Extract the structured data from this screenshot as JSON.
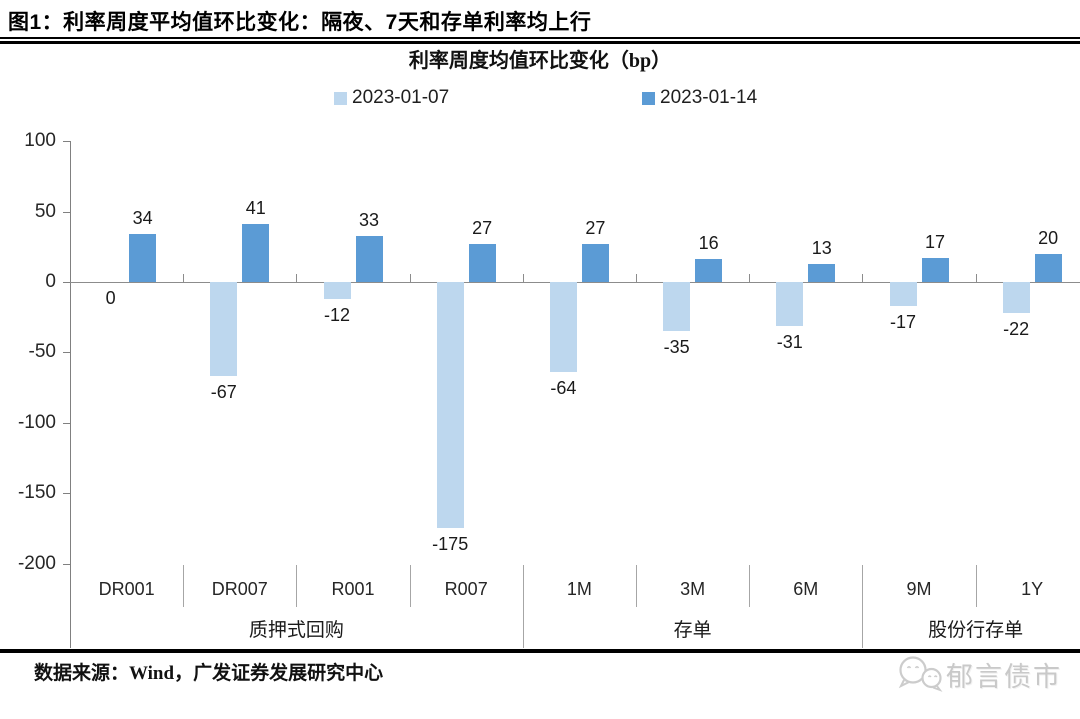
{
  "figure_title": "图1：利率周度平均值环比变化：隔夜、7天和存单利率均上行",
  "chart_data": {
    "type": "bar",
    "title": "利率周度均值环比变化（bp）",
    "categories": [
      "DR001",
      "DR007",
      "R001",
      "R007",
      "1M",
      "3M",
      "6M",
      "9M",
      "1Y"
    ],
    "category_groups": [
      {
        "label": "质押式回购",
        "span": [
          0,
          3
        ]
      },
      {
        "label": "存单",
        "span": [
          4,
          6
        ]
      },
      {
        "label": "股份行存单",
        "span": [
          7,
          8
        ]
      }
    ],
    "series": [
      {
        "name": "2023-01-07",
        "color": "#BDD7EE",
        "values": [
          0,
          -67,
          -12,
          -175,
          -64,
          -35,
          -31,
          -17,
          -22
        ]
      },
      {
        "name": "2023-01-14",
        "color": "#5B9BD5",
        "values": [
          34,
          41,
          33,
          27,
          27,
          16,
          13,
          17,
          20
        ]
      }
    ],
    "ylim": [
      -200,
      100
    ],
    "yticks": [
      100,
      50,
      0,
      -50,
      -100,
      -150,
      -200
    ],
    "grid": false,
    "legend_position": "top",
    "data_labels": true
  },
  "footer": {
    "source": "数据来源：Wind，广发证券发展研究中心",
    "watermark": "郁言债市"
  }
}
